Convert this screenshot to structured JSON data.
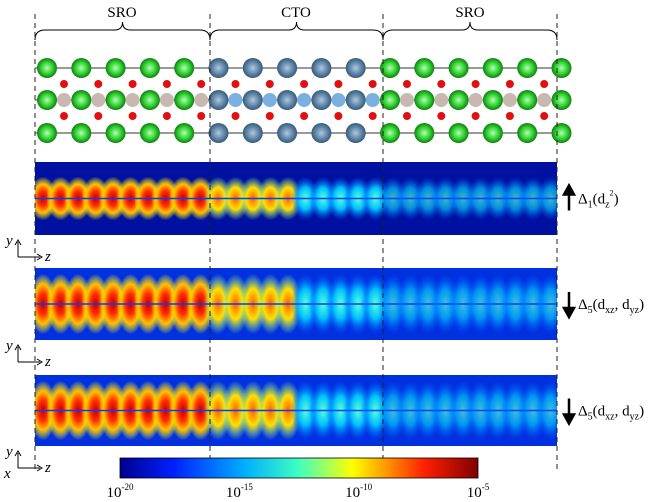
{
  "regions": [
    "SRO",
    "CTO",
    "SRO"
  ],
  "panels": [
    {
      "label": [
        "Δ",
        "1",
        "(d",
        "z",
        "2",
        ")"
      ],
      "axes": [
        "y",
        "z"
      ]
    },
    {
      "label": [
        "Δ",
        "5",
        "(d",
        "xz",
        ", d",
        "yz",
        ")"
      ],
      "axes": [
        "y",
        "z"
      ]
    },
    {
      "label": [
        "Δ",
        "5",
        "(d",
        "xz",
        ", d",
        "yz",
        ")"
      ],
      "axes": [
        "y",
        "z",
        "x"
      ]
    }
  ],
  "colorbar": {
    "ticks": [
      {
        "base": "10",
        "exponent": "-20"
      },
      {
        "base": "10",
        "exponent": "-15"
      },
      {
        "base": "10",
        "exponent": "-10"
      },
      {
        "base": "10",
        "exponent": "-5"
      }
    ]
  }
}
